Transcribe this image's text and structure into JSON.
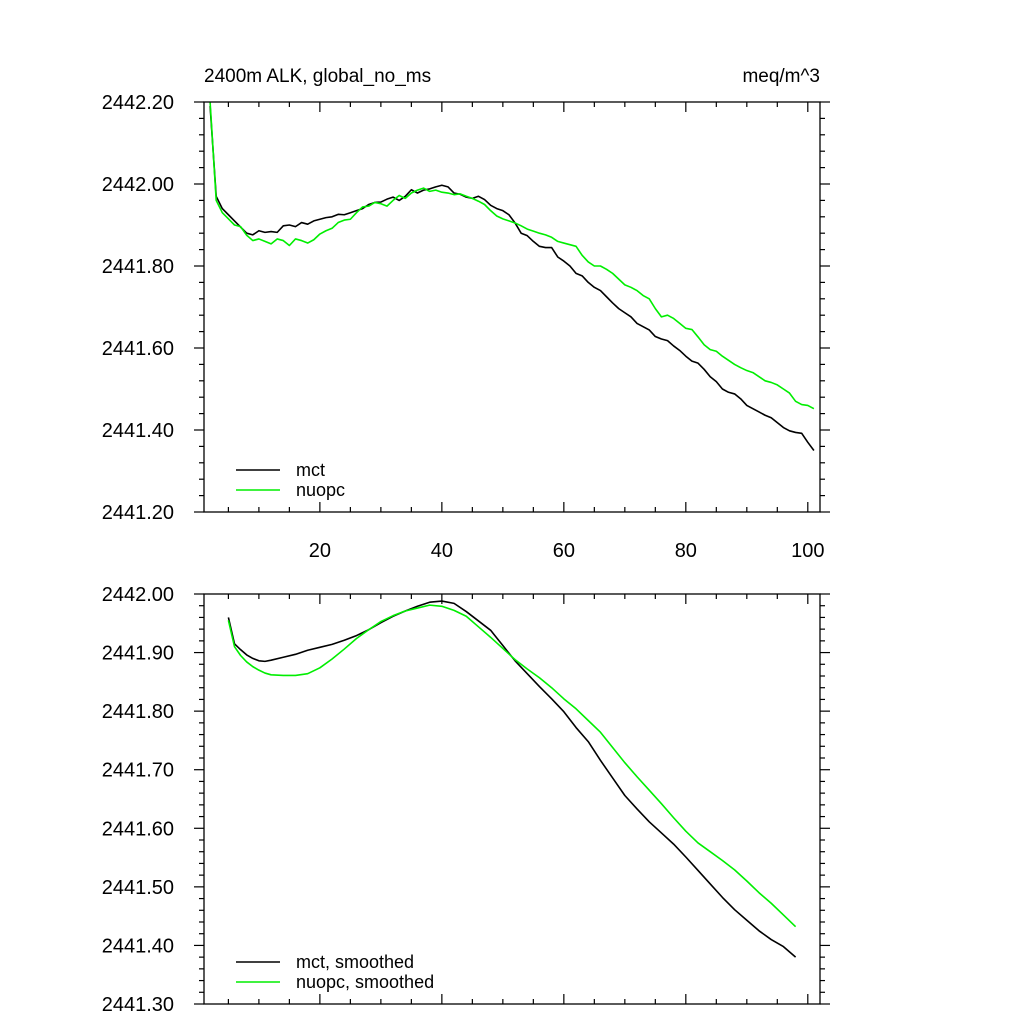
{
  "colors": {
    "mct": "#000000",
    "nuopc": "#00ee00",
    "axis": "#000000",
    "background": "#ffffff"
  },
  "chart_data": [
    {
      "type": "line",
      "title": "2400m ALK, global_no_ms",
      "units": "meq/m^3",
      "xlabel": "",
      "ylabel": "",
      "xlim": [
        1,
        102
      ],
      "ylim": [
        2441.2,
        2442.2
      ],
      "x_major_ticks": [
        20,
        40,
        60,
        80,
        100
      ],
      "x_tick_labels": [
        "20",
        "40",
        "60",
        "80",
        "100"
      ],
      "y_major_ticks": [
        2441.2,
        2441.4,
        2441.6,
        2441.8,
        2442.0,
        2442.2
      ],
      "y_tick_labels": [
        "2441.20",
        "2441.40",
        "2441.60",
        "2441.80",
        "2442.00",
        "2442.20"
      ],
      "legend_position": "bottom-left",
      "grid": false,
      "series": [
        {
          "name": "mct",
          "color": "#000000",
          "x": [
            2,
            3,
            4,
            5,
            6,
            7,
            8,
            9,
            10,
            11,
            12,
            13,
            14,
            15,
            16,
            17,
            18,
            19,
            20,
            21,
            22,
            23,
            24,
            25,
            26,
            27,
            28,
            29,
            30,
            31,
            32,
            33,
            34,
            35,
            36,
            37,
            38,
            39,
            40,
            41,
            42,
            43,
            44,
            45,
            46,
            47,
            48,
            49,
            50,
            51,
            52,
            53,
            54,
            55,
            56,
            57,
            58,
            59,
            60,
            61,
            62,
            63,
            64,
            65,
            66,
            67,
            68,
            69,
            70,
            71,
            72,
            73,
            74,
            75,
            76,
            77,
            78,
            79,
            80,
            81,
            82,
            83,
            84,
            85,
            86,
            87,
            88,
            89,
            90,
            91,
            92,
            93,
            94,
            95,
            96,
            97,
            98,
            99,
            100,
            101
          ],
          "values": [
            2442.19,
            2441.97,
            2441.94,
            2441.925,
            2441.91,
            2441.895,
            2441.88,
            2441.876,
            2441.886,
            2441.882,
            2441.884,
            2441.882,
            2441.898,
            2441.9,
            2441.896,
            2441.906,
            2441.902,
            2441.91,
            2441.914,
            2441.918,
            2441.92,
            2441.926,
            2441.925,
            2441.93,
            2441.935,
            2441.94,
            2441.95,
            2441.955,
            2441.956,
            2441.963,
            2441.968,
            2441.96,
            2441.97,
            2441.986,
            2441.978,
            2441.985,
            2441.988,
            2441.993,
            2441.997,
            2441.993,
            2441.978,
            2441.975,
            2441.968,
            2441.965,
            2441.97,
            2441.962,
            2441.948,
            2441.94,
            2441.935,
            2441.925,
            2441.905,
            2441.88,
            2441.874,
            2441.86,
            2441.848,
            2441.845,
            2441.845,
            2441.822,
            2441.812,
            2441.8,
            2441.782,
            2441.776,
            2441.76,
            2441.748,
            2441.74,
            2441.725,
            2441.71,
            2441.696,
            2441.686,
            2441.676,
            2441.66,
            2441.652,
            2441.644,
            2441.628,
            2441.622,
            2441.618,
            2441.605,
            2441.594,
            2441.58,
            2441.568,
            2441.563,
            2441.548,
            2441.53,
            2441.518,
            2441.5,
            2441.492,
            2441.488,
            2441.476,
            2441.46,
            2441.452,
            2441.444,
            2441.436,
            2441.43,
            2441.418,
            2441.406,
            2441.398,
            2441.394,
            2441.392,
            2441.37,
            2441.35
          ]
        },
        {
          "name": "nuopc",
          "color": "#00ee00",
          "x": [
            2,
            3,
            4,
            5,
            6,
            7,
            8,
            9,
            10,
            11,
            12,
            13,
            14,
            15,
            16,
            17,
            18,
            19,
            20,
            21,
            22,
            23,
            24,
            25,
            26,
            27,
            28,
            29,
            30,
            31,
            32,
            33,
            34,
            35,
            36,
            37,
            38,
            39,
            40,
            41,
            42,
            43,
            44,
            45,
            46,
            47,
            48,
            49,
            50,
            51,
            52,
            53,
            54,
            55,
            56,
            57,
            58,
            59,
            60,
            61,
            62,
            63,
            64,
            65,
            66,
            67,
            68,
            69,
            70,
            71,
            72,
            73,
            74,
            75,
            76,
            77,
            78,
            79,
            80,
            81,
            82,
            83,
            84,
            85,
            86,
            87,
            88,
            89,
            90,
            91,
            92,
            93,
            94,
            95,
            96,
            97,
            98,
            99,
            100,
            101
          ],
          "values": [
            2442.2,
            2441.96,
            2441.93,
            2441.915,
            2441.9,
            2441.896,
            2441.875,
            2441.862,
            2441.866,
            2441.86,
            2441.854,
            2441.866,
            2441.862,
            2441.85,
            2441.866,
            2441.862,
            2441.856,
            2441.864,
            2441.878,
            2441.886,
            2441.892,
            2441.906,
            2441.912,
            2441.914,
            2441.93,
            2441.944,
            2441.946,
            2441.955,
            2441.952,
            2441.946,
            2441.96,
            2441.972,
            2441.965,
            2441.978,
            2441.985,
            2441.99,
            2441.982,
            2441.985,
            2441.98,
            2441.978,
            2441.974,
            2441.976,
            2441.97,
            2441.965,
            2441.958,
            2441.95,
            2441.935,
            2441.922,
            2441.915,
            2441.91,
            2441.905,
            2441.898,
            2441.89,
            2441.885,
            2441.88,
            2441.876,
            2441.87,
            2441.86,
            2441.856,
            2441.852,
            2441.848,
            2441.826,
            2441.81,
            2441.8,
            2441.8,
            2441.792,
            2441.782,
            2441.768,
            2441.754,
            2441.748,
            2441.74,
            2441.728,
            2441.72,
            2441.696,
            2441.676,
            2441.68,
            2441.672,
            2441.66,
            2441.648,
            2441.645,
            2441.627,
            2441.608,
            2441.596,
            2441.592,
            2441.58,
            2441.57,
            2441.56,
            2441.552,
            2441.545,
            2441.54,
            2441.53,
            2441.52,
            2441.516,
            2441.51,
            2441.5,
            2441.49,
            2441.47,
            2441.462,
            2441.46,
            2441.452
          ]
        }
      ]
    },
    {
      "type": "line",
      "title": "",
      "xlabel": "",
      "ylabel": "",
      "xlim": [
        1,
        102
      ],
      "ylim": [
        2441.3,
        2442.0
      ],
      "x_major_ticks": [
        20,
        40,
        60,
        80,
        100
      ],
      "x_tick_labels": [],
      "y_major_ticks": [
        2441.3,
        2441.4,
        2441.5,
        2441.6,
        2441.7,
        2441.8,
        2441.9,
        2442.0
      ],
      "y_tick_labels": [
        "2441.30",
        "2441.40",
        "2441.50",
        "2441.60",
        "2441.70",
        "2441.80",
        "2441.90",
        "2442.00"
      ],
      "legend_position": "bottom-left",
      "grid": false,
      "series": [
        {
          "name": "mct, smoothed",
          "color": "#000000",
          "x": [
            5,
            6,
            7,
            8,
            9,
            10,
            11,
            12,
            14,
            16,
            18,
            20,
            22,
            24,
            26,
            28,
            30,
            32,
            34,
            36,
            38,
            40,
            42,
            44,
            46,
            48,
            50,
            52,
            54,
            56,
            58,
            60,
            62,
            64,
            66,
            68,
            70,
            72,
            74,
            76,
            78,
            80,
            82,
            84,
            86,
            88,
            90,
            92,
            94,
            96,
            98
          ],
          "values": [
            2441.96,
            2441.915,
            2441.905,
            2441.896,
            2441.89,
            2441.886,
            2441.885,
            2441.887,
            2441.892,
            2441.897,
            2441.904,
            2441.909,
            2441.914,
            2441.921,
            2441.929,
            2441.939,
            2441.951,
            2441.962,
            2441.971,
            2441.979,
            2441.986,
            2441.988,
            2441.984,
            2441.97,
            2441.954,
            2441.938,
            2441.912,
            2441.886,
            2441.864,
            2441.842,
            2441.821,
            2441.799,
            2441.772,
            2441.748,
            2441.716,
            2441.686,
            2441.656,
            2441.633,
            2441.611,
            2441.592,
            2441.573,
            2441.551,
            2441.528,
            2441.505,
            2441.482,
            2441.461,
            2441.443,
            2441.425,
            2441.41,
            2441.398,
            2441.38
          ]
        },
        {
          "name": "nuopc, smoothed",
          "color": "#00ee00",
          "x": [
            5,
            6,
            7,
            8,
            9,
            10,
            11,
            12,
            14,
            16,
            18,
            20,
            22,
            24,
            26,
            28,
            30,
            32,
            34,
            36,
            38,
            40,
            42,
            44,
            46,
            48,
            50,
            52,
            54,
            56,
            58,
            60,
            62,
            64,
            66,
            68,
            70,
            72,
            74,
            76,
            78,
            80,
            82,
            84,
            86,
            88,
            90,
            92,
            94,
            96,
            98
          ],
          "values": [
            2441.955,
            2441.91,
            2441.895,
            2441.884,
            2441.876,
            2441.87,
            2441.865,
            2441.862,
            2441.861,
            2441.861,
            2441.864,
            2441.874,
            2441.889,
            2441.906,
            2441.924,
            2441.939,
            2441.953,
            2441.963,
            2441.971,
            2441.976,
            2441.981,
            2441.979,
            2441.972,
            2441.962,
            2441.944,
            2441.926,
            2441.907,
            2441.888,
            2441.872,
            2441.857,
            2441.84,
            2441.821,
            2441.804,
            2441.784,
            2441.764,
            2441.738,
            2441.712,
            2441.688,
            2441.665,
            2441.642,
            2441.618,
            2441.595,
            2441.575,
            2441.56,
            2441.545,
            2441.529,
            2441.51,
            2441.49,
            2441.472,
            2441.452,
            2441.432
          ]
        }
      ]
    }
  ]
}
